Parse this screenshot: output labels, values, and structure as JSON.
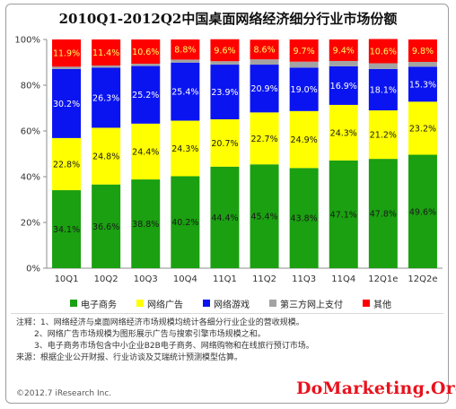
{
  "title": "2010Q1-2012Q2中国桌面网络经济细分行业市场份额",
  "chart_data": {
    "type": "bar",
    "stacked": true,
    "categories": [
      "10Q1",
      "10Q2",
      "10Q3",
      "10Q4",
      "11Q1",
      "11Q2",
      "11Q3",
      "11Q4",
      "12Q1e",
      "12Q2e"
    ],
    "y_ticks": [
      "0%",
      "20%",
      "40%",
      "60%",
      "80%",
      "100%"
    ],
    "ylim": [
      0,
      100
    ],
    "series": [
      {
        "name": "电子商务",
        "color": "#1aa010",
        "values": [
          34.1,
          36.6,
          38.8,
          40.2,
          44.4,
          45.4,
          43.8,
          47.1,
          47.8,
          49.6
        ],
        "labels": [
          "34.1%",
          "36.6%",
          "38.8%",
          "40.2%",
          "44.4%",
          "45.4%",
          "43.8%",
          "47.1%",
          "47.8%",
          "49.6%"
        ],
        "label_color": "#1a1a1a"
      },
      {
        "name": "网络广告",
        "color": "#ffff00",
        "values": [
          22.8,
          24.8,
          24.4,
          24.3,
          20.7,
          22.7,
          24.9,
          24.3,
          21.2,
          23.2
        ],
        "labels": [
          "22.8%",
          "24.8%",
          "24.4%",
          "24.3%",
          "20.7%",
          "22.7%",
          "24.9%",
          "24.3%",
          "21.2%",
          "23.2%"
        ],
        "label_color": "#1a1a1a"
      },
      {
        "name": "网络游戏",
        "color": "#0a14f0",
        "values": [
          30.2,
          26.3,
          25.2,
          25.4,
          23.9,
          20.9,
          19.0,
          16.9,
          18.1,
          15.3
        ],
        "labels": [
          "30.2%",
          "26.3%",
          "25.2%",
          "25.4%",
          "23.9%",
          "20.9%",
          "19.0%",
          "16.9%",
          "18.1%",
          "15.3%"
        ],
        "label_color": "#ffffff"
      },
      {
        "name": "第三方网上支付",
        "color": "#a3a3a3",
        "values": [
          1.0,
          0.9,
          1.0,
          1.3,
          1.5,
          2.3,
          2.6,
          2.3,
          2.5,
          2.1
        ],
        "labels": [],
        "label_color": "#1a1a1a"
      },
      {
        "name": "其他",
        "color": "#ff0000",
        "values": [
          11.9,
          11.4,
          10.6,
          8.8,
          9.6,
          8.6,
          9.7,
          9.4,
          10.6,
          9.8
        ],
        "labels": [
          "11.9%",
          "11.4%",
          "10.6%",
          "8.8%",
          "9.6%",
          "8.6%",
          "9.7%",
          "9.4%",
          "10.6%",
          "9.8%"
        ],
        "label_color": "#ffff66"
      }
    ]
  },
  "notes": [
    "注释：1、网络经济与桌面网络经济市场规模均统计各细分行业企业的营收规模。",
    "2、网络广告市场规模为图形展示广告与搜索引擎市场规模之和。",
    "3、电子商务市场包含中小企业B2B电子商务、网络购物和在线旅行预订市场。",
    "来源：根据企业公开财报、行业访谈及艾瑞统计预测模型估算。"
  ],
  "copyright": "©2012.7 iResearch Inc.",
  "watermark": "DoMarketing.Org"
}
